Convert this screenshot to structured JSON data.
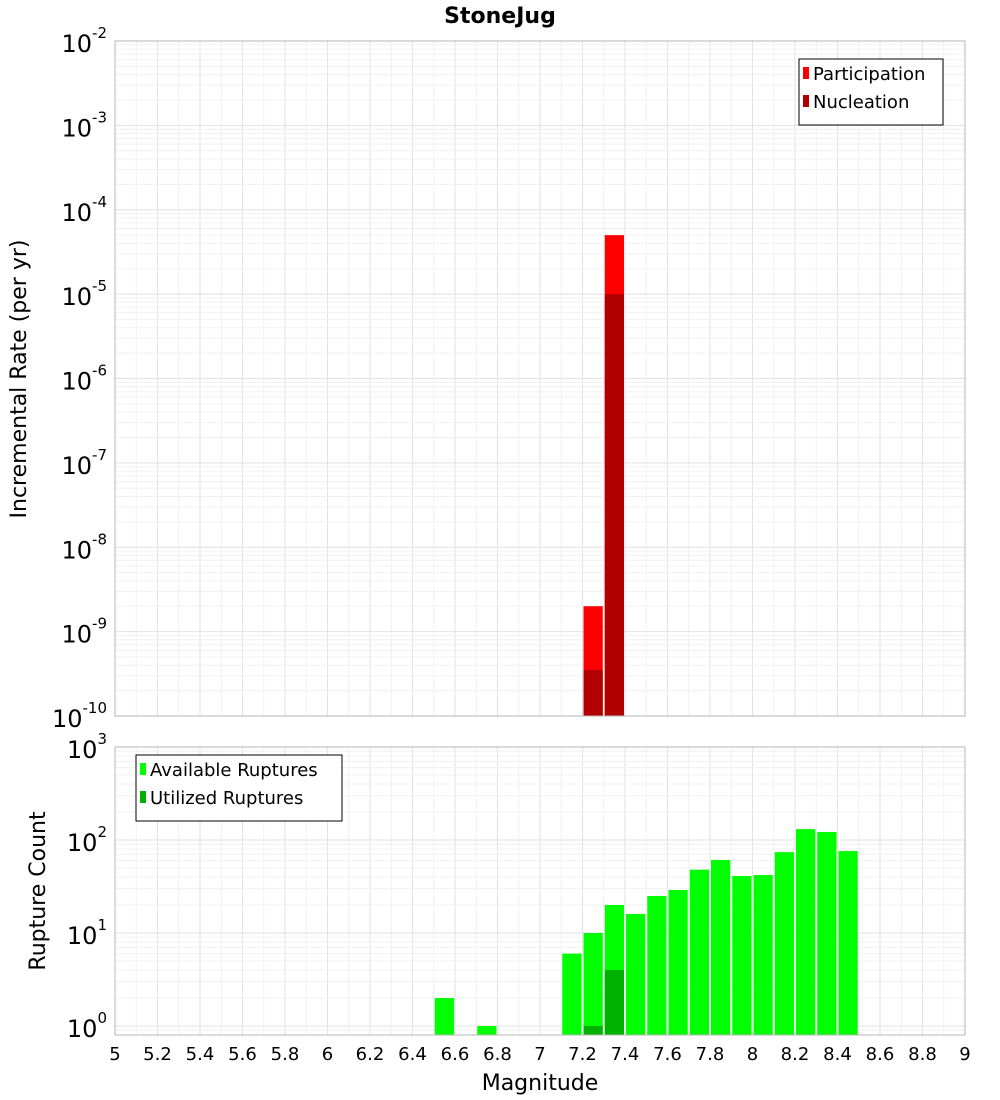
{
  "chart_data": [
    {
      "type": "bar",
      "title": "StoneJug",
      "xlabel": "Magnitude",
      "ylabel": "Incremental Rate (per yr)",
      "xlim": [
        5,
        9
      ],
      "ylim": [
        1e-10,
        0.01
      ],
      "yscale": "log",
      "grid": true,
      "legend_position": "top-right",
      "bin_width": 0.1,
      "series": [
        {
          "name": "Participation",
          "color": "#ff0000",
          "points": [
            {
              "x": 7.25,
              "y": 2e-09
            },
            {
              "x": 7.35,
              "y": 5e-05
            }
          ]
        },
        {
          "name": "Nucleation",
          "color": "#b20000",
          "points": [
            {
              "x": 7.25,
              "y": 3.5e-10
            },
            {
              "x": 7.35,
              "y": 1e-05
            }
          ]
        }
      ],
      "yticks": [
        {
          "base": "10",
          "exp": "-2",
          "value": 0.01
        },
        {
          "base": "10",
          "exp": "-3",
          "value": 0.001
        },
        {
          "base": "10",
          "exp": "-4",
          "value": 0.0001
        },
        {
          "base": "10",
          "exp": "-5",
          "value": 1e-05
        },
        {
          "base": "10",
          "exp": "-6",
          "value": 1e-06
        },
        {
          "base": "10",
          "exp": "-7",
          "value": 1e-07
        },
        {
          "base": "10",
          "exp": "-8",
          "value": 1e-08
        },
        {
          "base": "10",
          "exp": "-9",
          "value": 1e-09
        },
        {
          "base": "10",
          "exp": "-10",
          "value": 1e-10
        }
      ]
    },
    {
      "type": "bar",
      "xlabel": "Magnitude",
      "ylabel": "Rupture Count",
      "xlim": [
        5,
        9
      ],
      "ylim": [
        0.8,
        1000
      ],
      "yscale": "log",
      "grid": true,
      "legend_position": "top-left",
      "bin_width": 0.1,
      "series": [
        {
          "name": "Available Ruptures",
          "color": "#00ff00",
          "points": [
            {
              "x": 6.55,
              "y": 2
            },
            {
              "x": 6.75,
              "y": 1
            },
            {
              "x": 7.15,
              "y": 6
            },
            {
              "x": 7.25,
              "y": 10
            },
            {
              "x": 7.35,
              "y": 20
            },
            {
              "x": 7.45,
              "y": 16
            },
            {
              "x": 7.55,
              "y": 25
            },
            {
              "x": 7.65,
              "y": 29
            },
            {
              "x": 7.75,
              "y": 48
            },
            {
              "x": 7.85,
              "y": 61
            },
            {
              "x": 7.95,
              "y": 41
            },
            {
              "x": 8.05,
              "y": 42
            },
            {
              "x": 8.15,
              "y": 74
            },
            {
              "x": 8.25,
              "y": 131
            },
            {
              "x": 8.35,
              "y": 122
            },
            {
              "x": 8.45,
              "y": 76
            }
          ]
        },
        {
          "name": "Utilized Ruptures",
          "color": "#00b200",
          "points": [
            {
              "x": 7.25,
              "y": 1
            },
            {
              "x": 7.35,
              "y": 4
            }
          ]
        }
      ],
      "yticks": [
        {
          "base": "10",
          "exp": "3",
          "value": 1000
        },
        {
          "base": "10",
          "exp": "2",
          "value": 100
        },
        {
          "base": "10",
          "exp": "1",
          "value": 10
        },
        {
          "base": "10",
          "exp": "0",
          "value": 1
        }
      ],
      "xticks": [
        "5",
        "5.2",
        "5.4",
        "5.6",
        "5.8",
        "6",
        "6.2",
        "6.4",
        "6.6",
        "6.8",
        "7",
        "7.2",
        "7.4",
        "7.6",
        "7.8",
        "8",
        "8.2",
        "8.4",
        "8.6",
        "8.8",
        "9"
      ]
    }
  ]
}
